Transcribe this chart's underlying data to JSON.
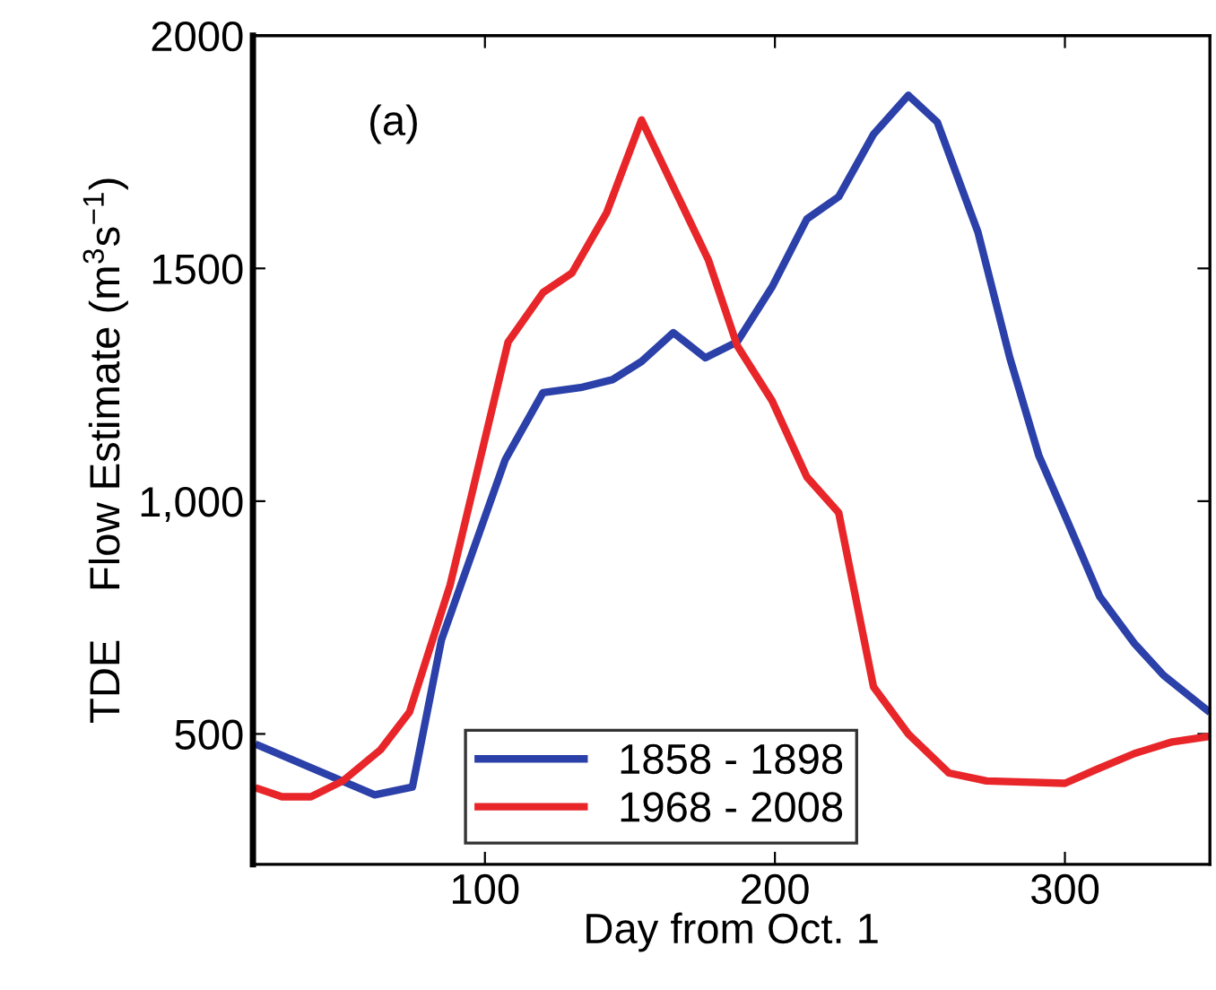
{
  "chart_data": {
    "type": "line",
    "xlabel": "Day from Oct. 1",
    "ylabel": "TDE    Flow Estimate (m$^{3}$s$^{−1}$)",
    "annotations": [
      "(a)"
    ],
    "xlim": [
      20,
      350
    ],
    "xticks": [
      100,
      200,
      300
    ],
    "ylim": [
      220,
      2000
    ],
    "yticks": [
      500,
      {
        "value": 1000,
        "label": "1,000"
      },
      1500,
      2000
    ],
    "legend": "bottom left",
    "grid": false,
    "marker": "none",
    "line_style": "solid",
    "series": [
      {
        "name": "1858 - 1898",
        "color": "#2b40a8",
        "x": [
          22,
          62,
          75,
          85,
          107,
          120,
          133,
          144,
          154,
          165,
          176,
          187,
          199,
          211,
          222,
          234,
          246,
          256,
          270,
          281,
          291,
          301,
          312,
          324,
          334,
          349
        ],
        "values": [
          475,
          369,
          386,
          702,
          1089,
          1233,
          1244,
          1261,
          1300,
          1362,
          1308,
          1342,
          1460,
          1606,
          1654,
          1788,
          1872,
          1814,
          1578,
          1308,
          1098,
          955,
          795,
          694,
          626,
          551
        ]
      },
      {
        "name": "1968 - 2008",
        "color": "#e8262a",
        "x": [
          22,
          30,
          40,
          51,
          64,
          74,
          88,
          108,
          120,
          130,
          142,
          154,
          166,
          177,
          187,
          199,
          211,
          222,
          234,
          246,
          260,
          273,
          300,
          311,
          324,
          337,
          350
        ],
        "values": [
          382,
          365,
          365,
          399,
          466,
          547,
          820,
          1342,
          1448,
          1490,
          1620,
          1819,
          1662,
          1519,
          1334,
          1216,
          1052,
          975,
          601,
          500,
          416,
          399,
          394,
          424,
          458,
          483,
          495
        ]
      }
    ]
  }
}
